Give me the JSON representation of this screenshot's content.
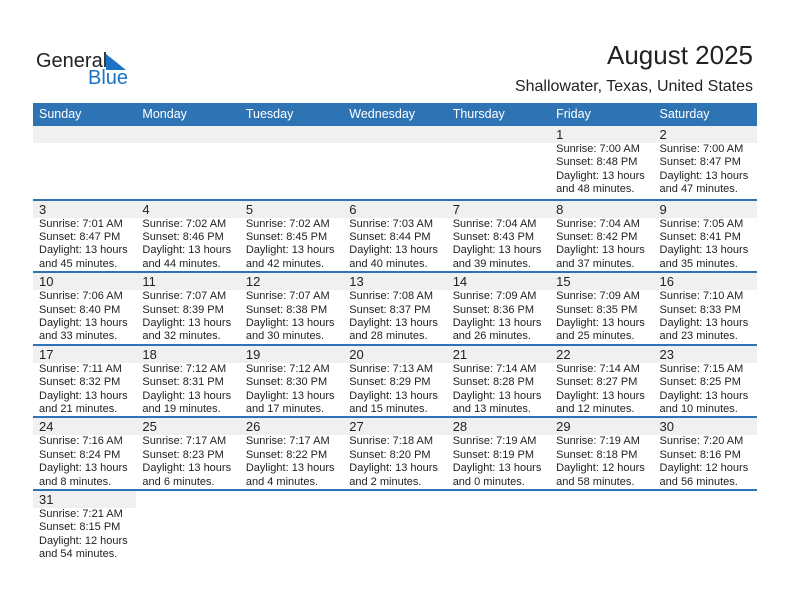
{
  "logo": {
    "text1": "General",
    "text2": "Blue"
  },
  "header": {
    "title": "August 2025",
    "location": "Shallowater, Texas, United States"
  },
  "colors": {
    "accent": "#2e74b5",
    "band": "#f0f0f0"
  },
  "weekdays": [
    "Sunday",
    "Monday",
    "Tuesday",
    "Wednesday",
    "Thursday",
    "Friday",
    "Saturday"
  ],
  "weeks": [
    [
      null,
      null,
      null,
      null,
      null,
      {
        "day": "1",
        "sunrise": "Sunrise: 7:00 AM",
        "sunset": "Sunset: 8:48 PM",
        "daylight": "Daylight: 13 hours",
        "minutes": "and 48 minutes."
      },
      {
        "day": "2",
        "sunrise": "Sunrise: 7:00 AM",
        "sunset": "Sunset: 8:47 PM",
        "daylight": "Daylight: 13 hours",
        "minutes": "and 47 minutes."
      }
    ],
    [
      {
        "day": "3",
        "sunrise": "Sunrise: 7:01 AM",
        "sunset": "Sunset: 8:47 PM",
        "daylight": "Daylight: 13 hours",
        "minutes": "and 45 minutes."
      },
      {
        "day": "4",
        "sunrise": "Sunrise: 7:02 AM",
        "sunset": "Sunset: 8:46 PM",
        "daylight": "Daylight: 13 hours",
        "minutes": "and 44 minutes."
      },
      {
        "day": "5",
        "sunrise": "Sunrise: 7:02 AM",
        "sunset": "Sunset: 8:45 PM",
        "daylight": "Daylight: 13 hours",
        "minutes": "and 42 minutes."
      },
      {
        "day": "6",
        "sunrise": "Sunrise: 7:03 AM",
        "sunset": "Sunset: 8:44 PM",
        "daylight": "Daylight: 13 hours",
        "minutes": "and 40 minutes."
      },
      {
        "day": "7",
        "sunrise": "Sunrise: 7:04 AM",
        "sunset": "Sunset: 8:43 PM",
        "daylight": "Daylight: 13 hours",
        "minutes": "and 39 minutes."
      },
      {
        "day": "8",
        "sunrise": "Sunrise: 7:04 AM",
        "sunset": "Sunset: 8:42 PM",
        "daylight": "Daylight: 13 hours",
        "minutes": "and 37 minutes."
      },
      {
        "day": "9",
        "sunrise": "Sunrise: 7:05 AM",
        "sunset": "Sunset: 8:41 PM",
        "daylight": "Daylight: 13 hours",
        "minutes": "and 35 minutes."
      }
    ],
    [
      {
        "day": "10",
        "sunrise": "Sunrise: 7:06 AM",
        "sunset": "Sunset: 8:40 PM",
        "daylight": "Daylight: 13 hours",
        "minutes": "and 33 minutes."
      },
      {
        "day": "11",
        "sunrise": "Sunrise: 7:07 AM",
        "sunset": "Sunset: 8:39 PM",
        "daylight": "Daylight: 13 hours",
        "minutes": "and 32 minutes."
      },
      {
        "day": "12",
        "sunrise": "Sunrise: 7:07 AM",
        "sunset": "Sunset: 8:38 PM",
        "daylight": "Daylight: 13 hours",
        "minutes": "and 30 minutes."
      },
      {
        "day": "13",
        "sunrise": "Sunrise: 7:08 AM",
        "sunset": "Sunset: 8:37 PM",
        "daylight": "Daylight: 13 hours",
        "minutes": "and 28 minutes."
      },
      {
        "day": "14",
        "sunrise": "Sunrise: 7:09 AM",
        "sunset": "Sunset: 8:36 PM",
        "daylight": "Daylight: 13 hours",
        "minutes": "and 26 minutes."
      },
      {
        "day": "15",
        "sunrise": "Sunrise: 7:09 AM",
        "sunset": "Sunset: 8:35 PM",
        "daylight": "Daylight: 13 hours",
        "minutes": "and 25 minutes."
      },
      {
        "day": "16",
        "sunrise": "Sunrise: 7:10 AM",
        "sunset": "Sunset: 8:33 PM",
        "daylight": "Daylight: 13 hours",
        "minutes": "and 23 minutes."
      }
    ],
    [
      {
        "day": "17",
        "sunrise": "Sunrise: 7:11 AM",
        "sunset": "Sunset: 8:32 PM",
        "daylight": "Daylight: 13 hours",
        "minutes": "and 21 minutes."
      },
      {
        "day": "18",
        "sunrise": "Sunrise: 7:12 AM",
        "sunset": "Sunset: 8:31 PM",
        "daylight": "Daylight: 13 hours",
        "minutes": "and 19 minutes."
      },
      {
        "day": "19",
        "sunrise": "Sunrise: 7:12 AM",
        "sunset": "Sunset: 8:30 PM",
        "daylight": "Daylight: 13 hours",
        "minutes": "and 17 minutes."
      },
      {
        "day": "20",
        "sunrise": "Sunrise: 7:13 AM",
        "sunset": "Sunset: 8:29 PM",
        "daylight": "Daylight: 13 hours",
        "minutes": "and 15 minutes."
      },
      {
        "day": "21",
        "sunrise": "Sunrise: 7:14 AM",
        "sunset": "Sunset: 8:28 PM",
        "daylight": "Daylight: 13 hours",
        "minutes": "and 13 minutes."
      },
      {
        "day": "22",
        "sunrise": "Sunrise: 7:14 AM",
        "sunset": "Sunset: 8:27 PM",
        "daylight": "Daylight: 13 hours",
        "minutes": "and 12 minutes."
      },
      {
        "day": "23",
        "sunrise": "Sunrise: 7:15 AM",
        "sunset": "Sunset: 8:25 PM",
        "daylight": "Daylight: 13 hours",
        "minutes": "and 10 minutes."
      }
    ],
    [
      {
        "day": "24",
        "sunrise": "Sunrise: 7:16 AM",
        "sunset": "Sunset: 8:24 PM",
        "daylight": "Daylight: 13 hours",
        "minutes": "and 8 minutes."
      },
      {
        "day": "25",
        "sunrise": "Sunrise: 7:17 AM",
        "sunset": "Sunset: 8:23 PM",
        "daylight": "Daylight: 13 hours",
        "minutes": "and 6 minutes."
      },
      {
        "day": "26",
        "sunrise": "Sunrise: 7:17 AM",
        "sunset": "Sunset: 8:22 PM",
        "daylight": "Daylight: 13 hours",
        "minutes": "and 4 minutes."
      },
      {
        "day": "27",
        "sunrise": "Sunrise: 7:18 AM",
        "sunset": "Sunset: 8:20 PM",
        "daylight": "Daylight: 13 hours",
        "minutes": "and 2 minutes."
      },
      {
        "day": "28",
        "sunrise": "Sunrise: 7:19 AM",
        "sunset": "Sunset: 8:19 PM",
        "daylight": "Daylight: 13 hours",
        "minutes": "and 0 minutes."
      },
      {
        "day": "29",
        "sunrise": "Sunrise: 7:19 AM",
        "sunset": "Sunset: 8:18 PM",
        "daylight": "Daylight: 12 hours",
        "minutes": "and 58 minutes."
      },
      {
        "day": "30",
        "sunrise": "Sunrise: 7:20 AM",
        "sunset": "Sunset: 8:16 PM",
        "daylight": "Daylight: 12 hours",
        "minutes": "and 56 minutes."
      }
    ],
    [
      {
        "day": "31",
        "sunrise": "Sunrise: 7:21 AM",
        "sunset": "Sunset: 8:15 PM",
        "daylight": "Daylight: 12 hours",
        "minutes": "and 54 minutes."
      }
    ]
  ]
}
